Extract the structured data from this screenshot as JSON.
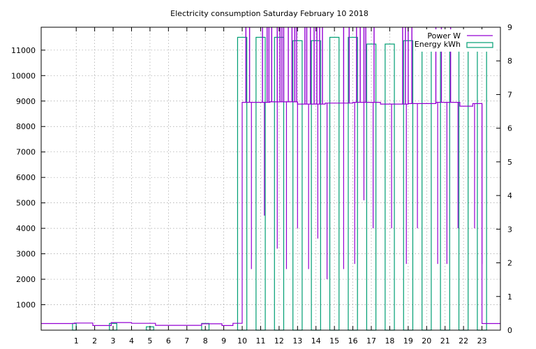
{
  "chart_data": {
    "type": "line",
    "title": "Electricity consumption Saturday February 10 2018",
    "xlabel": "",
    "ylabel": "",
    "y2label": "",
    "grid": true,
    "legend_position": "top-right",
    "x_ticks": [
      1,
      2,
      3,
      4,
      5,
      6,
      7,
      8,
      9,
      10,
      11,
      12,
      13,
      14,
      15,
      16,
      17,
      18,
      19,
      20,
      21,
      22,
      23
    ],
    "xlim": [
      -0.9,
      24.0
    ],
    "ylim": [
      0,
      11900
    ],
    "y_ticks": [
      1000,
      2000,
      3000,
      4000,
      5000,
      6000,
      7000,
      8000,
      9000,
      10000,
      11000
    ],
    "y2lim": [
      0,
      9
    ],
    "y2_ticks": [
      0,
      1,
      2,
      3,
      4,
      5,
      6,
      7,
      8,
      9
    ],
    "series": [
      {
        "name": "Power W",
        "axis": "y1",
        "color": "#9400d3",
        "style": "steps",
        "base_segments": [
          {
            "x0": -0.9,
            "x1": 0.9,
            "y": 260
          },
          {
            "x0": 0.9,
            "x1": 1.9,
            "y": 280
          },
          {
            "x0": 1.9,
            "x1": 2.9,
            "y": 180
          },
          {
            "x0": 2.9,
            "x1": 4.0,
            "y": 300
          },
          {
            "x0": 4.0,
            "x1": 5.3,
            "y": 270
          },
          {
            "x0": 5.3,
            "x1": 7.8,
            "y": 190
          },
          {
            "x0": 7.8,
            "x1": 8.9,
            "y": 250
          },
          {
            "x0": 8.9,
            "x1": 9.5,
            "y": 180
          },
          {
            "x0": 9.5,
            "x1": 10.0,
            "y": 270
          },
          {
            "x0": 10.0,
            "x1": 11.5,
            "y": 8950
          },
          {
            "x0": 11.5,
            "x1": 13.0,
            "y": 8970
          },
          {
            "x0": 13.0,
            "x1": 14.5,
            "y": 8880
          },
          {
            "x0": 14.5,
            "x1": 16.0,
            "y": 8920
          },
          {
            "x0": 16.0,
            "x1": 17.5,
            "y": 8950
          },
          {
            "x0": 17.5,
            "x1": 19.0,
            "y": 8880
          },
          {
            "x0": 19.0,
            "x1": 20.5,
            "y": 8900
          },
          {
            "x0": 20.5,
            "x1": 21.8,
            "y": 8950
          },
          {
            "x0": 21.8,
            "x1": 22.5,
            "y": 8800
          },
          {
            "x0": 22.5,
            "x1": 23.0,
            "y": 8900
          },
          {
            "x0": 23.0,
            "x1": 24.0,
            "y": 260
          }
        ],
        "spikes_up": [
          10.2,
          10.4,
          11.1,
          11.35,
          11.45,
          11.6,
          11.9,
          12.05,
          12.15,
          12.25,
          12.5,
          12.7,
          12.85,
          12.95,
          13.4,
          13.5,
          13.7,
          13.9,
          14.05,
          14.2,
          14.35,
          15.5,
          15.8,
          16.2,
          16.4,
          16.6,
          16.7,
          17.15,
          18.7,
          18.85,
          19.0,
          19.2,
          20.5,
          20.8,
          21.3
        ],
        "spikes_down": [
          {
            "x": 10.5,
            "y": 2400
          },
          {
            "x": 11.2,
            "y": 4500
          },
          {
            "x": 11.9,
            "y": 3200
          },
          {
            "x": 12.4,
            "y": 2400
          },
          {
            "x": 13.0,
            "y": 4000
          },
          {
            "x": 13.6,
            "y": 2400
          },
          {
            "x": 14.1,
            "y": 3600
          },
          {
            "x": 14.6,
            "y": 2000
          },
          {
            "x": 15.5,
            "y": 2400
          },
          {
            "x": 16.1,
            "y": 2600
          },
          {
            "x": 16.6,
            "y": 5100
          },
          {
            "x": 17.1,
            "y": 4000
          },
          {
            "x": 18.1,
            "y": 4000
          },
          {
            "x": 18.9,
            "y": 2600
          },
          {
            "x": 19.5,
            "y": 4000
          },
          {
            "x": 20.6,
            "y": 2600
          },
          {
            "x": 21.1,
            "y": 2600
          },
          {
            "x": 21.7,
            "y": 4000
          },
          {
            "x": 22.6,
            "y": 4000
          },
          {
            "x": 23.0,
            "y": 2600
          }
        ]
      },
      {
        "name": "Energy kWh",
        "axis": "y2",
        "color": "#009e73",
        "style": "boxes",
        "boxes": [
          {
            "x0": 0.8,
            "x1": 1.0,
            "v": 0.2
          },
          {
            "x0": 2.8,
            "x1": 3.2,
            "v": 0.2
          },
          {
            "x0": 4.8,
            "x1": 5.2,
            "v": 0.1
          },
          {
            "x0": 7.8,
            "x1": 8.2,
            "v": 0.2
          },
          {
            "x0": 9.75,
            "x1": 10.25,
            "v": 8.7
          },
          {
            "x0": 10.75,
            "x1": 11.25,
            "v": 8.7
          },
          {
            "x0": 11.75,
            "x1": 12.25,
            "v": 8.7
          },
          {
            "x0": 12.75,
            "x1": 13.25,
            "v": 8.6
          },
          {
            "x0": 13.75,
            "x1": 14.25,
            "v": 8.6
          },
          {
            "x0": 14.75,
            "x1": 15.25,
            "v": 8.7
          },
          {
            "x0": 15.75,
            "x1": 16.25,
            "v": 8.7
          },
          {
            "x0": 16.75,
            "x1": 17.25,
            "v": 8.5
          },
          {
            "x0": 17.75,
            "x1": 18.25,
            "v": 8.5
          },
          {
            "x0": 18.75,
            "x1": 19.25,
            "v": 8.6
          },
          {
            "x0": 19.75,
            "x1": 20.25,
            "v": 8.8
          },
          {
            "x0": 20.75,
            "x1": 21.25,
            "v": 8.6
          },
          {
            "x0": 21.75,
            "x1": 22.25,
            "v": 8.5
          },
          {
            "x0": 22.75,
            "x1": 23.25,
            "v": 8.5
          }
        ]
      }
    ]
  }
}
